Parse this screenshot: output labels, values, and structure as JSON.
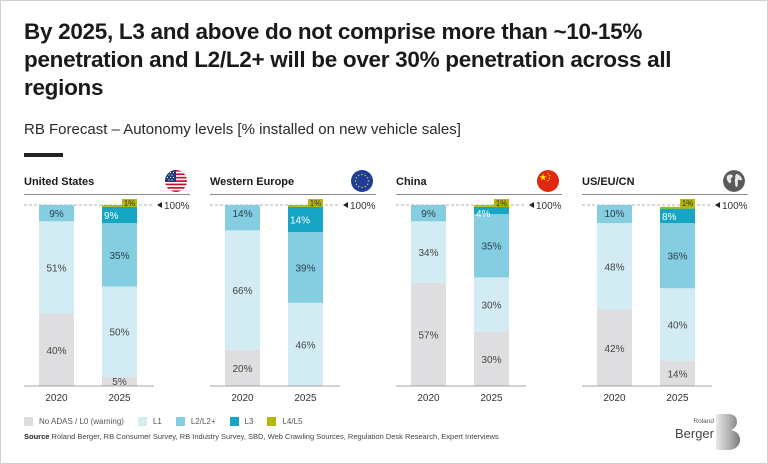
{
  "title": "By 2025, L3 and above do not comprise more than ~10-15% penetration and L2/L2+ will be over 30% penetration across all regions",
  "subtitle": "RB Forecast – Autonomy levels [% installed on new vehicle sales]",
  "marker_label": "100%",
  "legend": [
    {
      "key": "L0",
      "label": "No ADAS / L0 (warning)",
      "color": "#dedee0"
    },
    {
      "key": "L1",
      "label": "L1",
      "color": "#d3ebf2"
    },
    {
      "key": "L2",
      "label": "L2/L2+",
      "color": "#85cde0"
    },
    {
      "key": "L3",
      "label": "L3",
      "color": "#17a5c4"
    },
    {
      "key": "L45",
      "label": "L4/L5",
      "color": "#b5b80a"
    }
  ],
  "source": {
    "label": "Source",
    "text": "Roland Berger, RB Consumer Survey, RB Industry Survey, SBD, Web Crawling Sources, Regulation Desk Research, Expert Interviews"
  },
  "logo": {
    "small": "Roland",
    "big": "Berger"
  },
  "chart_data": {
    "type": "bar",
    "stacked": true,
    "title": "RB Forecast – Autonomy levels [% installed on new vehicle sales]",
    "ylabel": "% installed on new vehicle sales",
    "ylim": [
      0,
      100
    ],
    "categories": [
      "2020",
      "2025"
    ],
    "series_keys": [
      "L0",
      "L1",
      "L2",
      "L3",
      "L45"
    ],
    "series_names": [
      "No ADAS / L0 (warning)",
      "L1",
      "L2/L2+",
      "L3",
      "L4/L5"
    ],
    "panels": [
      {
        "name": "United States",
        "flag": "us-flag",
        "bars": [
          {
            "year": "2020",
            "values": {
              "L0": 40,
              "L1": 51,
              "L2": 9,
              "L3": 0,
              "L45": 0
            }
          },
          {
            "year": "2025",
            "values": {
              "L0": 5,
              "L1": 50,
              "L2": 35,
              "L3": 9,
              "L45": 1
            }
          }
        ]
      },
      {
        "name": "Western Europe",
        "flag": "eu-flag",
        "bars": [
          {
            "year": "2020",
            "values": {
              "L0": 20,
              "L1": 66,
              "L2": 14,
              "L3": 0,
              "L45": 0
            }
          },
          {
            "year": "2025",
            "values": {
              "L0": 0,
              "L1": 46,
              "L2": 39,
              "L3": 14,
              "L45": 1
            }
          }
        ]
      },
      {
        "name": "China",
        "flag": "china-flag",
        "bars": [
          {
            "year": "2020",
            "values": {
              "L0": 57,
              "L1": 34,
              "L2": 9,
              "L3": 0,
              "L45": 0
            }
          },
          {
            "year": "2025",
            "values": {
              "L0": 30,
              "L1": 30,
              "L2": 35,
              "L3": 4,
              "L45": 1
            }
          }
        ]
      },
      {
        "name": "US/EU/CN",
        "flag": "globe",
        "bars": [
          {
            "year": "2020",
            "values": {
              "L0": 42,
              "L1": 48,
              "L2": 10,
              "L3": 0,
              "L45": 0
            }
          },
          {
            "year": "2025",
            "values": {
              "L0": 14,
              "L1": 40,
              "L2": 36,
              "L3": 8,
              "L45": 1
            }
          }
        ]
      }
    ]
  }
}
